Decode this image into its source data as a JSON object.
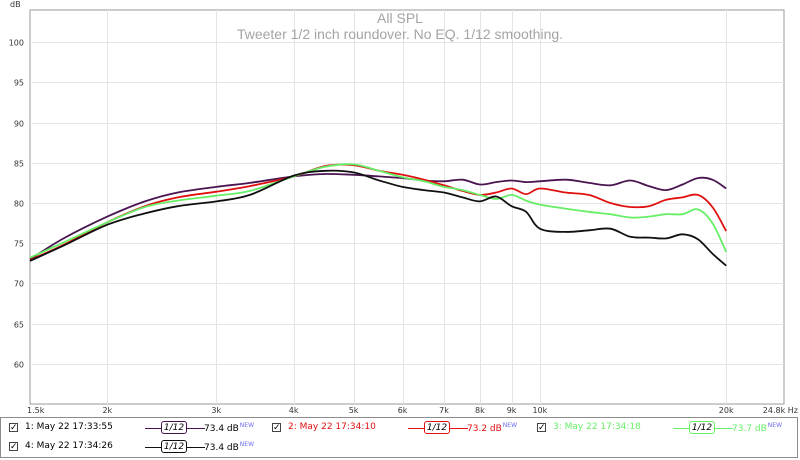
{
  "chart_data": {
    "type": "line",
    "title": "All SPL",
    "subtitle": "Tweeter 1/2 inch roundover. No EQ. 1/12 smoothing.",
    "yunit": "dB",
    "xunit_label": "24.8k Hz",
    "xscale": "log",
    "xlim": [
      1500,
      24800
    ],
    "ylim": [
      55,
      104
    ],
    "grid": true,
    "y_ticks": [
      60,
      65,
      70,
      75,
      80,
      85,
      90,
      95,
      100
    ],
    "x_ticks": [
      {
        "value": 1500,
        "label": "1.5k"
      },
      {
        "value": 2000,
        "label": "2k"
      },
      {
        "value": 3000,
        "label": "3k"
      },
      {
        "value": 4000,
        "label": "4k"
      },
      {
        "value": 5000,
        "label": "5k"
      },
      {
        "value": 6000,
        "label": "6k"
      },
      {
        "value": 7000,
        "label": "7k"
      },
      {
        "value": 8000,
        "label": "8k"
      },
      {
        "value": 9000,
        "label": "9k"
      },
      {
        "value": 10000,
        "label": "10k"
      },
      {
        "value": 20000,
        "label": "20k"
      }
    ],
    "series": [
      {
        "name": "1: May 22 17:33:55",
        "color": "#4a1450",
        "level": "73.4 dB",
        "x": [
          1500,
          1700,
          2000,
          2300,
          2600,
          3000,
          3400,
          4000,
          4500,
          5000,
          5500,
          6000,
          6500,
          7000,
          7500,
          8000,
          8500,
          9000,
          9500,
          10000,
          11000,
          12000,
          13000,
          14000,
          15000,
          16000,
          17000,
          18000,
          19000,
          20000
        ],
        "y": [
          73.0,
          75.6,
          78.3,
          80.2,
          81.3,
          82.0,
          82.5,
          83.3,
          83.6,
          83.5,
          83.3,
          83.1,
          82.8,
          82.7,
          82.9,
          82.3,
          82.6,
          82.8,
          82.6,
          82.7,
          82.9,
          82.5,
          82.2,
          82.8,
          82.1,
          81.6,
          82.3,
          83.1,
          82.9,
          81.8
        ]
      },
      {
        "name": "2: May 22 17:34:10",
        "color": "#e01010",
        "level": "73.2 dB",
        "x": [
          1500,
          1700,
          2000,
          2300,
          2600,
          3000,
          3400,
          4000,
          4500,
          5000,
          5500,
          6000,
          6500,
          7000,
          7500,
          8000,
          8500,
          9000,
          9500,
          10000,
          11000,
          12000,
          13000,
          14000,
          15000,
          16000,
          17000,
          18000,
          19000,
          20000
        ],
        "y": [
          72.9,
          74.8,
          77.6,
          79.6,
          80.7,
          81.4,
          82.1,
          83.3,
          84.6,
          84.7,
          84.0,
          83.5,
          82.9,
          82.2,
          81.5,
          81.0,
          81.3,
          81.8,
          81.1,
          81.8,
          81.3,
          81.0,
          80.0,
          79.5,
          79.6,
          80.4,
          80.7,
          81.0,
          79.5,
          76.5
        ]
      },
      {
        "name": "3: May 22 17:34:18",
        "color": "#66ee66",
        "level": "73.7 dB",
        "x": [
          1500,
          1700,
          2000,
          2300,
          2600,
          3000,
          3400,
          4000,
          4500,
          5000,
          5500,
          6000,
          6500,
          7000,
          7500,
          8000,
          8500,
          9000,
          9500,
          10000,
          11000,
          12000,
          13000,
          14000,
          15000,
          16000,
          17000,
          18000,
          19000,
          20000
        ],
        "y": [
          73.2,
          75.1,
          77.6,
          79.5,
          80.3,
          80.9,
          81.5,
          83.3,
          84.5,
          84.8,
          84.0,
          83.2,
          82.7,
          82.0,
          81.6,
          81.0,
          80.5,
          81.0,
          80.3,
          79.8,
          79.3,
          78.9,
          78.6,
          78.2,
          78.3,
          78.6,
          78.6,
          79.2,
          77.5,
          73.9
        ]
      },
      {
        "name": "4: May 22 17:34:26",
        "color": "#101010",
        "level": "73.4 dB",
        "x": [
          1500,
          1700,
          2000,
          2300,
          2600,
          3000,
          3400,
          4000,
          4500,
          5000,
          5500,
          6000,
          6500,
          7000,
          7500,
          8000,
          8500,
          9000,
          9500,
          10000,
          11000,
          12000,
          13000,
          14000,
          15000,
          16000,
          17000,
          18000,
          19000,
          20000
        ],
        "y": [
          72.8,
          74.7,
          77.3,
          78.7,
          79.6,
          80.2,
          81.0,
          83.4,
          84.0,
          83.8,
          82.8,
          82.0,
          81.6,
          81.3,
          80.7,
          80.2,
          80.8,
          79.6,
          78.9,
          76.8,
          76.4,
          76.6,
          76.8,
          75.8,
          75.7,
          75.6,
          76.1,
          75.5,
          73.7,
          72.2
        ]
      }
    ],
    "legend": {
      "smoothing": "1/12",
      "new_tag": "NEW"
    }
  }
}
